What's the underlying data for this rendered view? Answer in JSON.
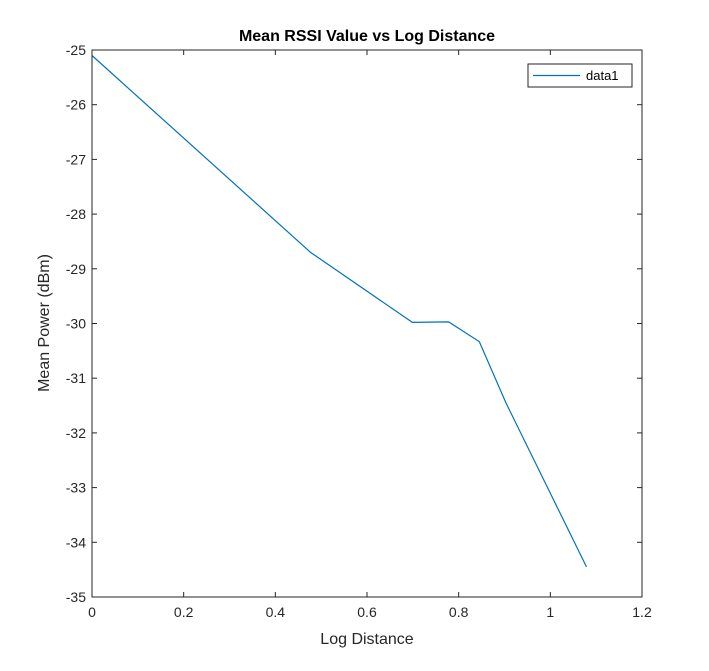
{
  "chart_data": {
    "type": "line",
    "title": "Mean RSSI Value vs Log Distance",
    "xlabel": "Log Distance",
    "ylabel": "Mean Power (dBm)",
    "xlim": [
      0,
      1.2
    ],
    "ylim": [
      -35,
      -25
    ],
    "xticks": [
      0,
      0.2,
      0.4,
      0.6,
      0.8,
      1,
      1.2
    ],
    "xtick_labels": [
      "0",
      "0.2",
      "0.4",
      "0.6",
      "0.8",
      "1",
      "1.2"
    ],
    "yticks": [
      -35,
      -34,
      -33,
      -32,
      -31,
      -30,
      -29,
      -28,
      -27,
      -26,
      -25
    ],
    "ytick_labels": [
      "-35",
      "-34",
      "-33",
      "-32",
      "-31",
      "-30",
      "-29",
      "-28",
      "-27",
      "-26",
      "-25"
    ],
    "grid": false,
    "legend_position": "top-right",
    "series": [
      {
        "name": "data1",
        "color": "#0072bd",
        "x": [
          0,
          0.477,
          0.699,
          0.778,
          0.845,
          0.903,
          1.079
        ],
        "y": [
          -25.1,
          -28.7,
          -29.98,
          -29.97,
          -30.33,
          -31.45,
          -34.45
        ]
      }
    ]
  }
}
